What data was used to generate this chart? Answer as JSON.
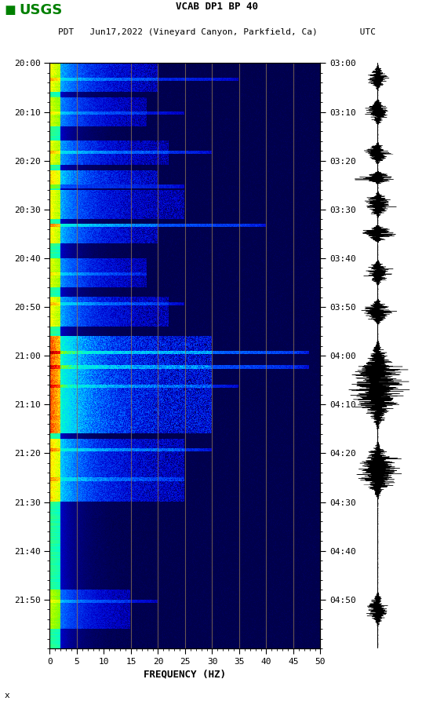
{
  "title_line1": "VCAB DP1 BP 40",
  "title_line2": "PDT   Jun17,2022 (Vineyard Canyon, Parkfield, Ca)        UTC",
  "xlabel": "FREQUENCY (HZ)",
  "freq_ticks": [
    0,
    5,
    10,
    15,
    20,
    25,
    30,
    35,
    40,
    45,
    50
  ],
  "time_labels_left": [
    "20:00",
    "20:10",
    "20:20",
    "20:30",
    "20:40",
    "20:50",
    "21:00",
    "21:10",
    "21:20",
    "21:30",
    "21:40",
    "21:50"
  ],
  "time_labels_right": [
    "03:00",
    "03:10",
    "03:20",
    "03:30",
    "03:40",
    "03:50",
    "04:00",
    "04:10",
    "04:20",
    "04:30",
    "04:40",
    "04:50"
  ],
  "background_color": "#ffffff",
  "vertical_line_color": "#8B7355",
  "vertical_line_positions": [
    5,
    15,
    20,
    25,
    30,
    35,
    40,
    45
  ],
  "seed": 42,
  "usgs_text": "USGS",
  "watermark": "x"
}
